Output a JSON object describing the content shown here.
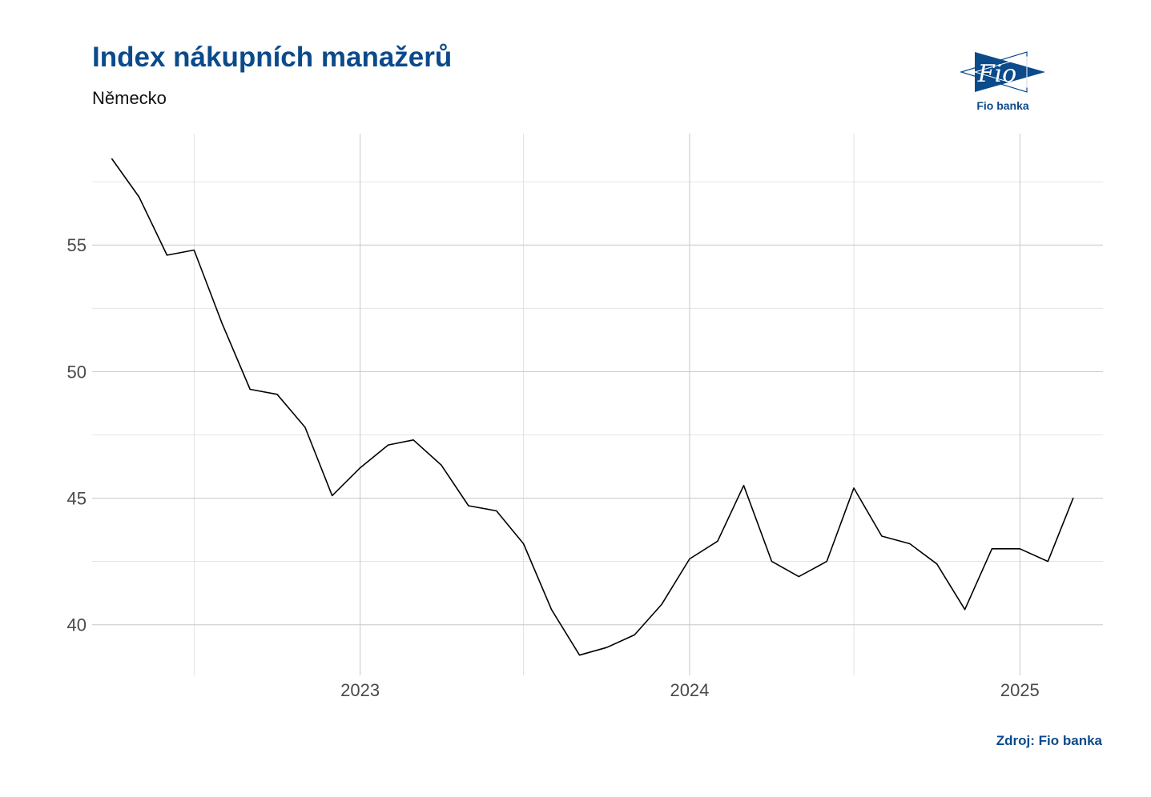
{
  "header": {
    "title": "Index nákupních manažerů",
    "subtitle": "Německo"
  },
  "logo": {
    "icon": "fio-logo-icon",
    "mark_text": "Fio",
    "caption": "Fio banka",
    "color": "#0b4a8b"
  },
  "footer": {
    "source": "Zdroj: Fio banka"
  },
  "chart_data": {
    "type": "line",
    "title": "Index nákupních manažerů",
    "subtitle": "Německo",
    "xlabel": "",
    "ylabel": "",
    "grid": true,
    "legend": "none",
    "line_color": "#000000",
    "x_ticks": [
      "2023",
      "2024",
      "2025"
    ],
    "y_ticks": [
      40,
      45,
      50,
      55
    ],
    "ylim": [
      38,
      59.4
    ],
    "xlim": [
      "2022-03-10",
      "2025-04-03"
    ],
    "series": [
      {
        "x": [
          "2022-04-01",
          "2022-05-01",
          "2022-06-01",
          "2022-07-01",
          "2022-08-01",
          "2022-09-01",
          "2022-10-01",
          "2022-11-01",
          "2022-12-01",
          "2023-01-01",
          "2023-02-01",
          "2023-03-01",
          "2023-04-01",
          "2023-05-01",
          "2023-06-01",
          "2023-07-01",
          "2023-08-01",
          "2023-09-01",
          "2023-10-01",
          "2023-11-01",
          "2023-12-01",
          "2024-01-01",
          "2024-02-01",
          "2024-03-01",
          "2024-04-01",
          "2024-05-01",
          "2024-06-01",
          "2024-07-01",
          "2024-08-01",
          "2024-09-01",
          "2024-10-01",
          "2024-11-01",
          "2024-12-01",
          "2025-01-01",
          "2025-02-01",
          "2025-03-01"
        ],
        "y": [
          58.4,
          56.9,
          54.6,
          54.8,
          51.9,
          49.3,
          49.1,
          47.8,
          45.1,
          46.2,
          47.1,
          47.3,
          46.3,
          44.7,
          44.5,
          43.2,
          40.6,
          38.8,
          39.1,
          39.6,
          40.8,
          42.6,
          43.3,
          45.5,
          42.5,
          41.9,
          42.5,
          45.4,
          43.5,
          43.2,
          42.4,
          40.6,
          43.0,
          43.0,
          42.5,
          45.0
        ]
      }
    ]
  }
}
